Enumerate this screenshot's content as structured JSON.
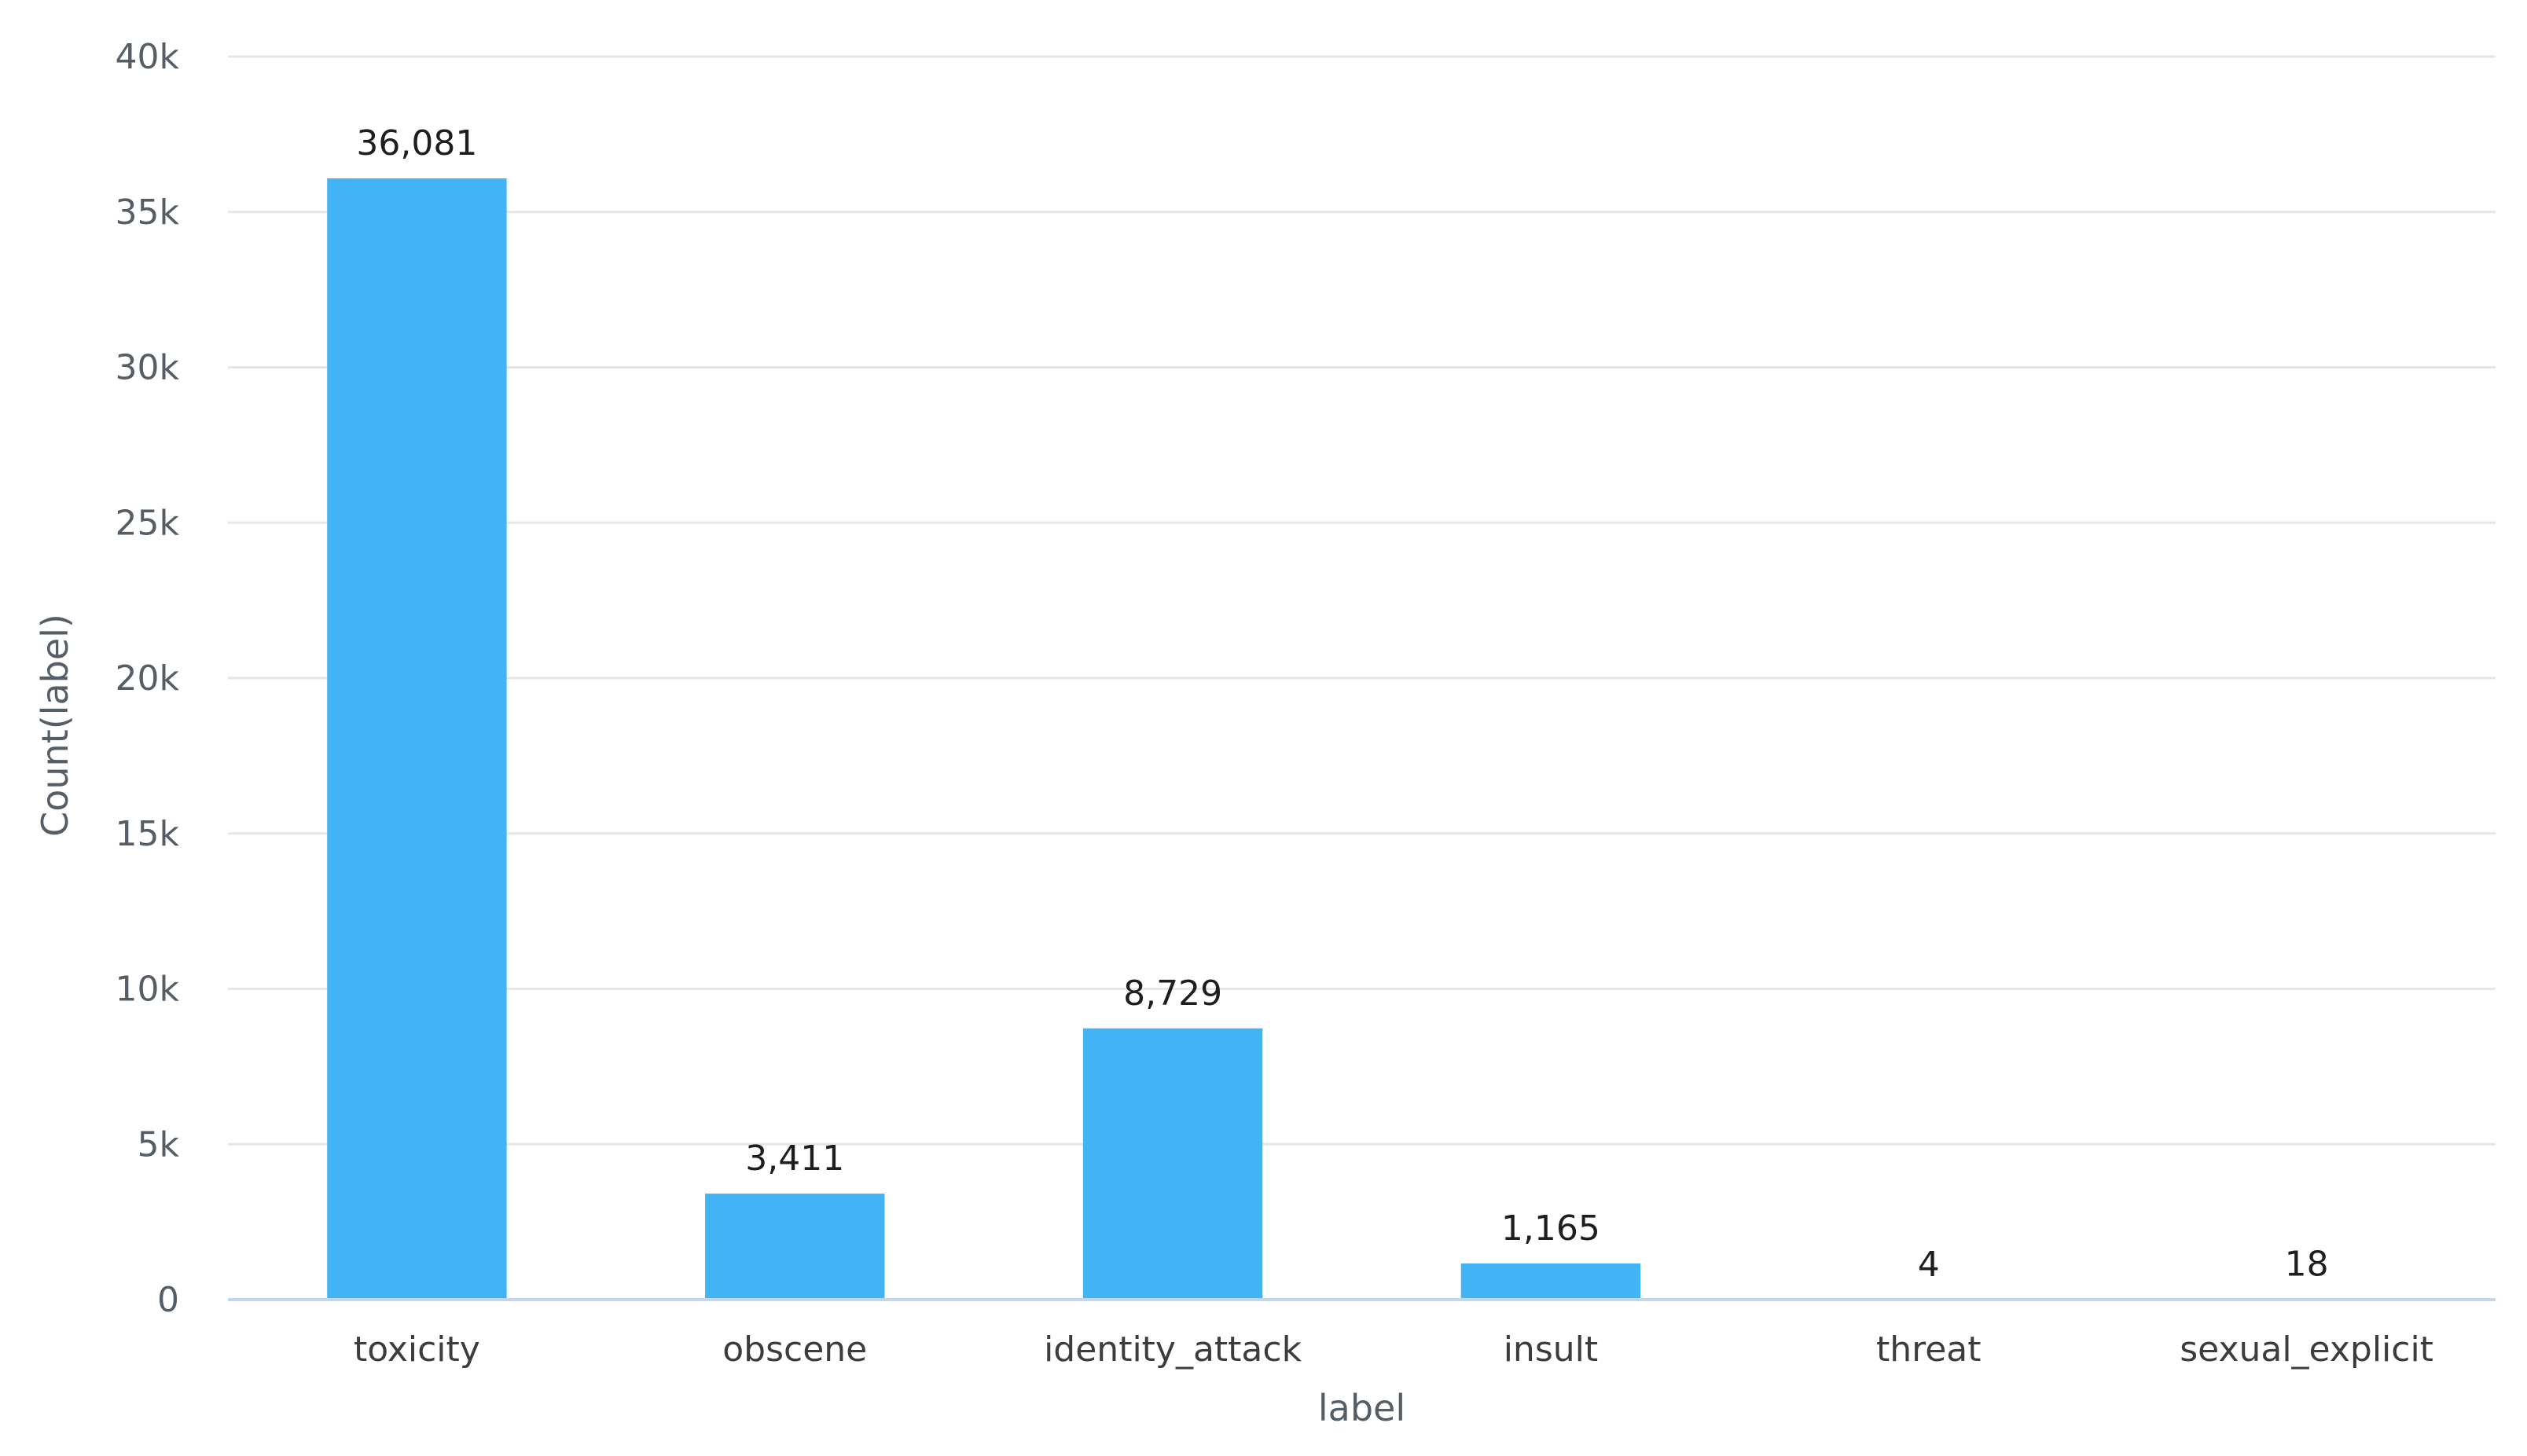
{
  "chart_data": {
    "type": "bar",
    "title": "",
    "xlabel": "label",
    "ylabel": "Count(label)",
    "categories": [
      "toxicity",
      "obscene",
      "identity_attack",
      "insult",
      "threat",
      "sexual_explicit"
    ],
    "values": [
      36081,
      3411,
      8729,
      1165,
      4,
      18
    ],
    "value_labels": [
      "36,081",
      "3,411",
      "8,729",
      "1,165",
      "4",
      "18"
    ],
    "ylim": [
      0,
      40000
    ],
    "yticks": [
      0,
      5000,
      10000,
      15000,
      20000,
      25000,
      30000,
      35000,
      40000
    ],
    "ytick_labels": [
      "0",
      "5k",
      "10k",
      "15k",
      "20k",
      "25k",
      "30k",
      "35k",
      "40k"
    ],
    "grid": true,
    "legend": "none",
    "bar_color": "#42b4f5"
  }
}
